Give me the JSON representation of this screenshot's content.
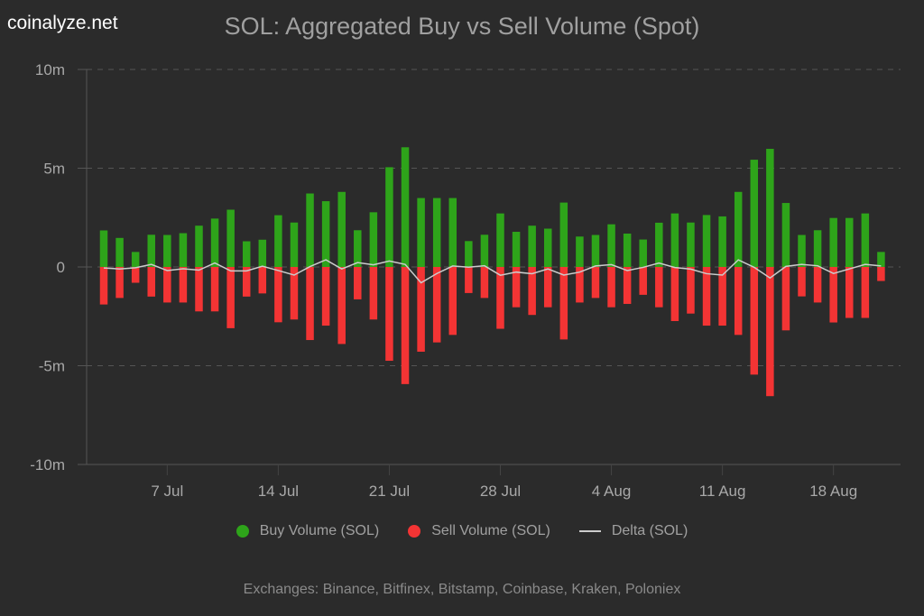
{
  "brand": "coinalyze.net",
  "chart_data": {
    "type": "bar",
    "title": "SOL: Aggregated Buy vs Sell Volume (Spot)",
    "xlabel": "",
    "ylabel": "",
    "ylim": [
      -10,
      10
    ],
    "y_unit": "m",
    "y_ticks": [
      10,
      5,
      0,
      -5,
      -10
    ],
    "y_tick_labels": [
      "10m",
      "5m",
      "0",
      "-5m",
      "-10m"
    ],
    "grid": true,
    "x_start_date": "3 Jul",
    "x_ticks": [
      {
        "label": "7 Jul",
        "index": 4
      },
      {
        "label": "14 Jul",
        "index": 11
      },
      {
        "label": "21 Jul",
        "index": 18
      },
      {
        "label": "28 Jul",
        "index": 25
      },
      {
        "label": "4 Aug",
        "index": 32
      },
      {
        "label": "11 Aug",
        "index": 39
      },
      {
        "label": "18 Aug",
        "index": 46
      }
    ],
    "legend_position": "bottom",
    "series": [
      {
        "name": "Buy Volume (SOL)",
        "kind": "bar",
        "color": "#2ea41a",
        "values": [
          1.85,
          1.47,
          0.76,
          1.63,
          1.62,
          1.71,
          2.09,
          2.45,
          2.9,
          1.3,
          1.38,
          2.62,
          2.25,
          3.72,
          3.33,
          3.8,
          1.86,
          2.77,
          5.05,
          6.06,
          3.49,
          3.49,
          3.49,
          1.31,
          1.63,
          2.71,
          1.78,
          2.09,
          1.94,
          3.26,
          1.54,
          1.62,
          2.16,
          1.69,
          1.39,
          2.24,
          2.71,
          2.25,
          2.63,
          2.56,
          3.8,
          5.43,
          5.98,
          3.24,
          1.62,
          1.86,
          2.48,
          2.48,
          2.71,
          0.76
        ]
      },
      {
        "name": "Sell Volume (SOL)",
        "kind": "bar",
        "color": "#f33434",
        "values": [
          -1.9,
          -1.57,
          -0.8,
          -1.5,
          -1.8,
          -1.8,
          -2.25,
          -2.25,
          -3.1,
          -1.5,
          -1.34,
          -2.8,
          -2.66,
          -3.7,
          -2.97,
          -3.9,
          -1.64,
          -2.66,
          -4.75,
          -5.93,
          -4.29,
          -3.82,
          -3.44,
          -1.32,
          -1.57,
          -3.13,
          -2.04,
          -2.43,
          -2.04,
          -3.67,
          -1.8,
          -1.57,
          -2.04,
          -1.87,
          -1.41,
          -2.04,
          -2.74,
          -2.36,
          -2.97,
          -2.97,
          -3.44,
          -5.45,
          -6.54,
          -3.21,
          -1.49,
          -1.8,
          -2.81,
          -2.58,
          -2.58,
          -0.71
        ]
      },
      {
        "name": "Delta (SOL)",
        "kind": "line",
        "color": "#cccccc",
        "values": [
          -0.05,
          -0.1,
          -0.04,
          0.13,
          -0.18,
          -0.09,
          -0.16,
          0.2,
          -0.2,
          -0.2,
          0.04,
          -0.18,
          -0.41,
          0.02,
          0.36,
          -0.1,
          0.22,
          0.11,
          0.3,
          0.13,
          -0.8,
          -0.33,
          0.05,
          -0.01,
          0.06,
          -0.42,
          -0.26,
          -0.34,
          -0.1,
          -0.41,
          -0.26,
          0.05,
          0.12,
          -0.18,
          -0.02,
          0.2,
          -0.03,
          -0.11,
          -0.34,
          -0.41,
          0.36,
          -0.02,
          -0.56,
          0.03,
          0.13,
          0.06,
          -0.33,
          -0.1,
          0.13,
          0.05
        ]
      }
    ]
  },
  "legend": [
    {
      "label": "Buy Volume (SOL)",
      "color": "#2ea41a",
      "shape": "circle"
    },
    {
      "label": "Sell Volume (SOL)",
      "color": "#f33434",
      "shape": "circle"
    },
    {
      "label": "Delta (SOL)",
      "color": "#cccccc",
      "shape": "line"
    }
  ],
  "footer": "Exchanges: Binance, Bitfinex, Bitstamp, Coinbase, Kraken, Poloniex"
}
